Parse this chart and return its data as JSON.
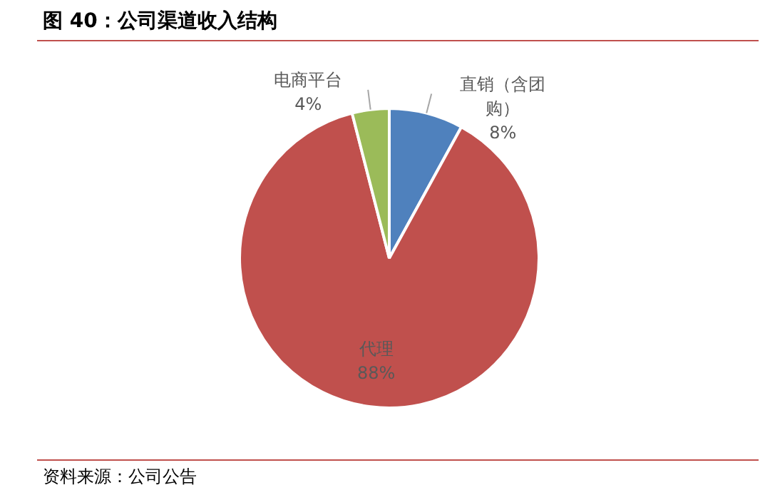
{
  "chart_data": {
    "type": "pie",
    "title": "图 40：公司渠道收入结构",
    "categories": [
      "直销（含团购）",
      "代理",
      "电商平台"
    ],
    "values": [
      8,
      88,
      4
    ],
    "colors": [
      "#4f81bd",
      "#c0504d",
      "#9bbb59"
    ],
    "value_labels": [
      "8%",
      "88%",
      "4%"
    ],
    "legend": false,
    "annotations": [
      "资料来源：公司公告"
    ]
  }
}
